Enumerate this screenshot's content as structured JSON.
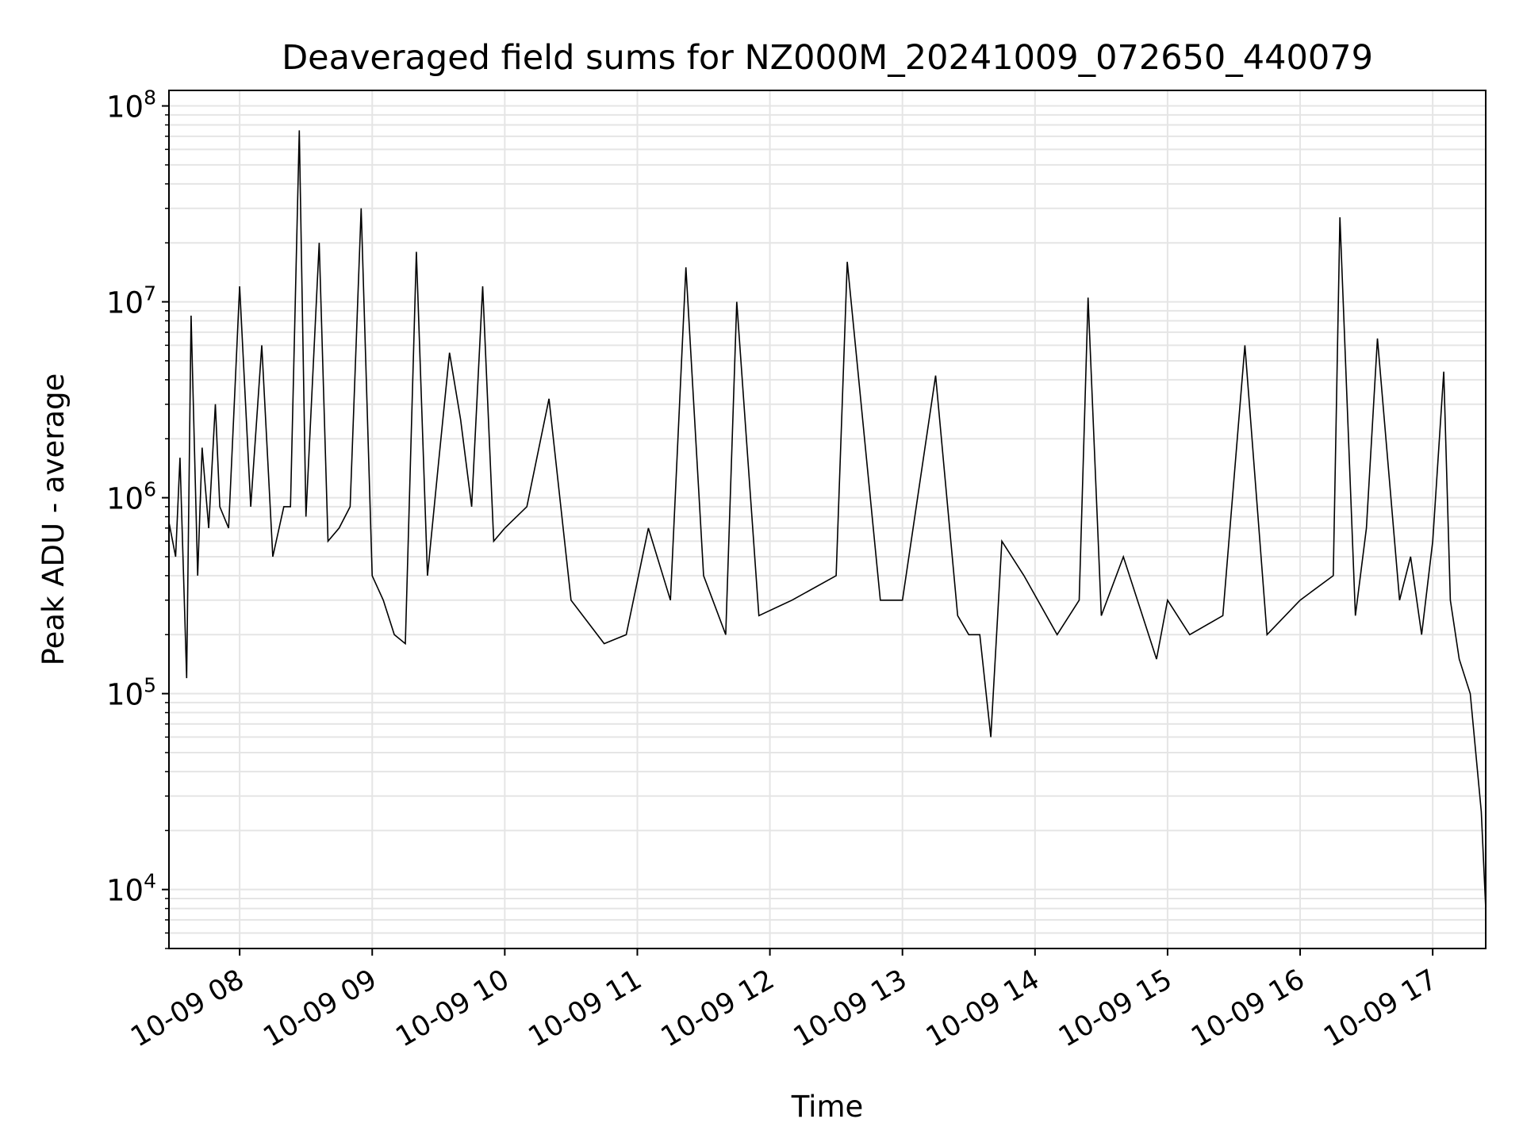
{
  "chart_data": {
    "type": "line",
    "title": "Deaveraged field sums for NZ000M_20241009_072650_440079",
    "xlabel": "Time",
    "ylabel": "Peak ADU - average",
    "yscale": "log",
    "ylim": [
      5000,
      120000000
    ],
    "xlim": [
      "2024-10-09 07:28",
      "2024-10-09 17:24"
    ],
    "grid": true,
    "line_color": "#000000",
    "grid_color": "#e5e5e5",
    "x_ticks": [
      {
        "t": "2024-10-09 08:00",
        "label": "10-09 08"
      },
      {
        "t": "2024-10-09 09:00",
        "label": "10-09 09"
      },
      {
        "t": "2024-10-09 10:00",
        "label": "10-09 10"
      },
      {
        "t": "2024-10-09 11:00",
        "label": "10-09 11"
      },
      {
        "t": "2024-10-09 12:00",
        "label": "10-09 12"
      },
      {
        "t": "2024-10-09 13:00",
        "label": "10-09 13"
      },
      {
        "t": "2024-10-09 14:00",
        "label": "10-09 14"
      },
      {
        "t": "2024-10-09 15:00",
        "label": "10-09 15"
      },
      {
        "t": "2024-10-09 16:00",
        "label": "10-09 16"
      },
      {
        "t": "2024-10-09 17:00",
        "label": "10-09 17"
      }
    ],
    "y_ticks": [
      {
        "value": 10000,
        "base": "10",
        "exp": "4"
      },
      {
        "value": 100000,
        "base": "10",
        "exp": "5"
      },
      {
        "value": 1000000,
        "base": "10",
        "exp": "6"
      },
      {
        "value": 10000000,
        "base": "10",
        "exp": "7"
      },
      {
        "value": 100000000,
        "base": "10",
        "exp": "8"
      }
    ],
    "series": [
      {
        "x": [
          "2024-10-09 07:28",
          "2024-10-09 07:31",
          "2024-10-09 07:33",
          "2024-10-09 07:36",
          "2024-10-09 07:38",
          "2024-10-09 07:41",
          "2024-10-09 07:43",
          "2024-10-09 07:46",
          "2024-10-09 07:49",
          "2024-10-09 07:51",
          "2024-10-09 07:55",
          "2024-10-09 08:00",
          "2024-10-09 08:05",
          "2024-10-09 08:10",
          "2024-10-09 08:15",
          "2024-10-09 08:20",
          "2024-10-09 08:23",
          "2024-10-09 08:27",
          "2024-10-09 08:30",
          "2024-10-09 08:36",
          "2024-10-09 08:40",
          "2024-10-09 08:45",
          "2024-10-09 08:50",
          "2024-10-09 08:55",
          "2024-10-09 09:00",
          "2024-10-09 09:05",
          "2024-10-09 09:10",
          "2024-10-09 09:15",
          "2024-10-09 09:20",
          "2024-10-09 09:25",
          "2024-10-09 09:30",
          "2024-10-09 09:35",
          "2024-10-09 09:40",
          "2024-10-09 09:45",
          "2024-10-09 09:50",
          "2024-10-09 09:55",
          "2024-10-09 10:00",
          "2024-10-09 10:10",
          "2024-10-09 10:20",
          "2024-10-09 10:30",
          "2024-10-09 10:45",
          "2024-10-09 10:55",
          "2024-10-09 11:05",
          "2024-10-09 11:15",
          "2024-10-09 11:22",
          "2024-10-09 11:30",
          "2024-10-09 11:40",
          "2024-10-09 11:45",
          "2024-10-09 11:55",
          "2024-10-09 12:10",
          "2024-10-09 12:30",
          "2024-10-09 12:35",
          "2024-10-09 12:50",
          "2024-10-09 13:00",
          "2024-10-09 13:15",
          "2024-10-09 13:25",
          "2024-10-09 13:30",
          "2024-10-09 13:35",
          "2024-10-09 13:40",
          "2024-10-09 13:45",
          "2024-10-09 13:55",
          "2024-10-09 14:10",
          "2024-10-09 14:20",
          "2024-10-09 14:24",
          "2024-10-09 14:30",
          "2024-10-09 14:40",
          "2024-10-09 14:55",
          "2024-10-09 15:00",
          "2024-10-09 15:10",
          "2024-10-09 15:25",
          "2024-10-09 15:35",
          "2024-10-09 15:45",
          "2024-10-09 16:00",
          "2024-10-09 16:15",
          "2024-10-09 16:18",
          "2024-10-09 16:25",
          "2024-10-09 16:30",
          "2024-10-09 16:35",
          "2024-10-09 16:45",
          "2024-10-09 16:50",
          "2024-10-09 16:55",
          "2024-10-09 17:00",
          "2024-10-09 17:05",
          "2024-10-09 17:08",
          "2024-10-09 17:12",
          "2024-10-09 17:17",
          "2024-10-09 17:22",
          "2024-10-09 17:24"
        ],
        "y": [
          750000,
          500000,
          1600000,
          120000,
          8500000,
          400000,
          1800000,
          700000,
          3000000,
          900000,
          700000,
          12000000,
          900000,
          6000000,
          500000,
          900000,
          900000,
          75000000,
          800000,
          20000000,
          600000,
          700000,
          900000,
          30000000,
          400000,
          300000,
          200000,
          180000,
          18000000,
          400000,
          1500000,
          5500000,
          2500000,
          900000,
          12000000,
          600000,
          700000,
          900000,
          3200000,
          300000,
          180000,
          200000,
          700000,
          300000,
          15000000,
          400000,
          200000,
          10000000,
          250000,
          300000,
          400000,
          16000000,
          300000,
          300000,
          4200000,
          250000,
          200000,
          200000,
          60000,
          600000,
          400000,
          200000,
          300000,
          10500000,
          250000,
          500000,
          150000,
          300000,
          200000,
          250000,
          6000000,
          200000,
          300000,
          400000,
          27000000,
          250000,
          700000,
          6500000,
          300000,
          500000,
          200000,
          600000,
          4400000,
          300000,
          150000,
          100000,
          25000,
          8000
        ]
      }
    ]
  }
}
